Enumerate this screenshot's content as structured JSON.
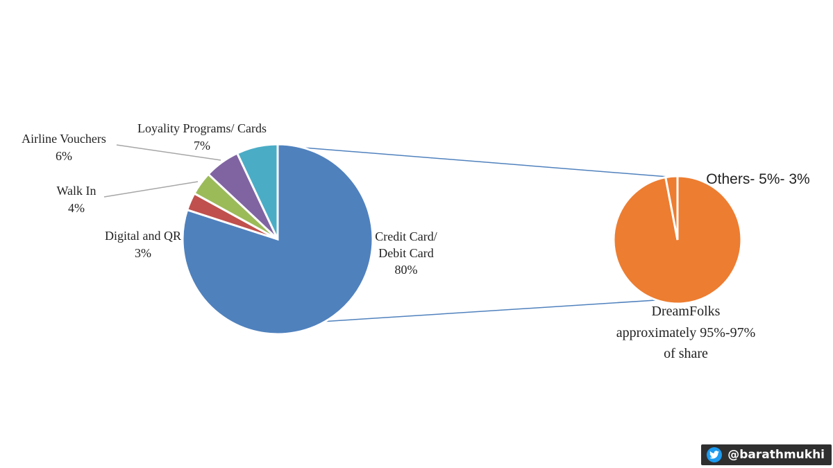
{
  "chart_data": {
    "type": "pie",
    "main_pie": {
      "slices": [
        {
          "label_line1": "Credit Card/",
          "label_line2": "Debit Card",
          "value_label": "80%",
          "value": 80,
          "color": "#4f81bd"
        },
        {
          "label_line1": "Digital and QR",
          "label_line2": "",
          "value_label": "3%",
          "value": 3,
          "color": "#c0504d"
        },
        {
          "label_line1": "Walk In",
          "label_line2": "",
          "value_label": "4%",
          "value": 4,
          "color": "#9bbb59"
        },
        {
          "label_line1": "Airline Vouchers",
          "label_line2": "",
          "value_label": "6%",
          "value": 6,
          "color": "#8064a2"
        },
        {
          "label_line1": "Loyality Programs/ Cards",
          "label_line2": "",
          "value_label": "7%",
          "value": 7,
          "color": "#4bacc6"
        }
      ]
    },
    "breakout_pie": {
      "slices": [
        {
          "label": "DreamFolks approximately 95%-97% of share",
          "value": 97,
          "color": "#ed7d31"
        },
        {
          "label": "Others- 5%- 3%",
          "value": 3,
          "color": "#ed7d31"
        }
      ],
      "title": "Others- 5%- 3%",
      "caption_lines": [
        "DreamFolks",
        "approximately 95%-97%",
        "of share"
      ]
    }
  },
  "watermark": {
    "handle": "@barathmukhi",
    "icon": "twitter-bird-icon"
  }
}
